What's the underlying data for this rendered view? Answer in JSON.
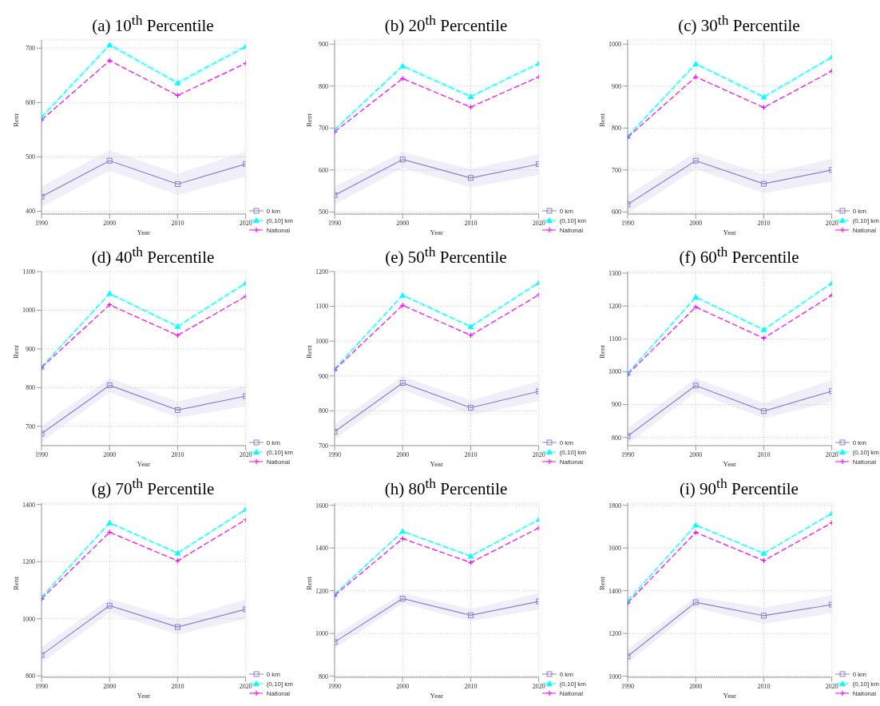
{
  "chart_data": [
    {
      "type": "line",
      "title": "(a) 10$^{th}$ Percentile",
      "xlabel": "Year",
      "ylabel": "Rent",
      "x": [
        1990,
        2000,
        2010,
        2020
      ],
      "xlim": [
        1990,
        2020
      ],
      "xticks": [
        1990,
        2000,
        2010,
        2020
      ],
      "ylim": [
        395,
        715
      ],
      "yticks": [
        400,
        500,
        600,
        700
      ],
      "grid": true,
      "legend": "bottom right",
      "series": [
        {
          "name": "0 km",
          "color": "#8c7fd0",
          "marker": "square",
          "line_style": "solid",
          "values": [
            427,
            493,
            450,
            487
          ],
          "lower": [
            408,
            475,
            430,
            464
          ],
          "upper": [
            446,
            512,
            469,
            510
          ]
        },
        {
          "name": "(0,10] km",
          "color": "#00ffff",
          "marker": "triangle",
          "line_style": "dashed",
          "values": [
            573,
            706,
            636,
            703
          ],
          "lower": [
            568,
            701,
            631,
            698
          ],
          "upper": [
            578,
            711,
            641,
            708
          ]
        },
        {
          "name": "National",
          "color": "#ff00ff",
          "marker": "cross",
          "line_style": "dashed",
          "values": [
            568,
            677,
            613,
            672
          ]
        }
      ]
    },
    {
      "type": "line",
      "title": "(b) 20$^{th}$ Percentile",
      "xlabel": "Year",
      "ylabel": "Rent",
      "x": [
        1990,
        2000,
        2010,
        2020
      ],
      "xlim": [
        1990,
        2020
      ],
      "xticks": [
        1990,
        2000,
        2010,
        2020
      ],
      "ylim": [
        495,
        910
      ],
      "yticks": [
        500,
        600,
        700,
        800,
        900
      ],
      "grid": true,
      "legend": "bottom right",
      "series": [
        {
          "name": "0 km",
          "color": "#8c7fd0",
          "marker": "square",
          "line_style": "solid",
          "values": [
            540,
            625,
            581,
            614
          ],
          "lower": [
            518,
            605,
            559,
            588
          ],
          "upper": [
            560,
            643,
            602,
            638
          ]
        },
        {
          "name": "(0,10] km",
          "color": "#00ffff",
          "marker": "triangle",
          "line_style": "dashed",
          "values": [
            696,
            848,
            775,
            854
          ],
          "lower": [
            691,
            843,
            770,
            849
          ],
          "upper": [
            701,
            853,
            780,
            859
          ]
        },
        {
          "name": "National",
          "color": "#ff00ff",
          "marker": "cross",
          "line_style": "dashed",
          "values": [
            691,
            818,
            750,
            822
          ]
        }
      ]
    },
    {
      "type": "line",
      "title": "(c) 30$^{th}$ Percentile",
      "xlabel": "Year",
      "ylabel": "Rent",
      "x": [
        1990,
        2000,
        2010,
        2020
      ],
      "xlim": [
        1990,
        2020
      ],
      "xticks": [
        1990,
        2000,
        2010,
        2020
      ],
      "ylim": [
        595,
        1010
      ],
      "yticks": [
        600,
        700,
        800,
        900,
        1000
      ],
      "grid": true,
      "legend": "bottom right",
      "series": [
        {
          "name": "0 km",
          "color": "#8c7fd0",
          "marker": "square",
          "line_style": "solid",
          "values": [
            618,
            722,
            667,
            700
          ],
          "lower": [
            597,
            702,
            645,
            673
          ],
          "upper": [
            640,
            742,
            689,
            727
          ]
        },
        {
          "name": "(0,10] km",
          "color": "#00ffff",
          "marker": "triangle",
          "line_style": "dashed",
          "values": [
            780,
            953,
            874,
            969
          ],
          "lower": [
            775,
            948,
            869,
            964
          ],
          "upper": [
            785,
            958,
            879,
            974
          ]
        },
        {
          "name": "National",
          "color": "#ff00ff",
          "marker": "cross",
          "line_style": "dashed",
          "values": [
            778,
            922,
            849,
            936
          ]
        }
      ]
    },
    {
      "type": "line",
      "title": "(d) 40$^{th}$ Percentile",
      "xlabel": "Year",
      "ylabel": "Rent",
      "x": [
        1990,
        2000,
        2010,
        2020
      ],
      "xlim": [
        1990,
        2020
      ],
      "xticks": [
        1990,
        2000,
        2010,
        2020
      ],
      "ylim": [
        650,
        1100
      ],
      "yticks": [
        700,
        800,
        900,
        1000,
        1100
      ],
      "grid": true,
      "legend": "bottom right",
      "series": [
        {
          "name": "0 km",
          "color": "#8c7fd0",
          "marker": "square",
          "line_style": "solid",
          "values": [
            681,
            806,
            742,
            778
          ],
          "lower": [
            660,
            788,
            722,
            752
          ],
          "upper": [
            702,
            824,
            764,
            805
          ]
        },
        {
          "name": "(0,10] km",
          "color": "#00ffff",
          "marker": "triangle",
          "line_style": "dashed",
          "values": [
            853,
            1043,
            958,
            1070
          ],
          "lower": [
            848,
            1038,
            953,
            1065
          ],
          "upper": [
            858,
            1048,
            963,
            1075
          ]
        },
        {
          "name": "National",
          "color": "#ff00ff",
          "marker": "cross",
          "line_style": "dashed",
          "values": [
            852,
            1014,
            935,
            1036
          ]
        }
      ]
    },
    {
      "type": "line",
      "title": "(e) 50$^{th}$ Percentile",
      "xlabel": "Year",
      "ylabel": "Rent",
      "x": [
        1990,
        2000,
        2010,
        2020
      ],
      "xlim": [
        1990,
        2020
      ],
      "xticks": [
        1990,
        2000,
        2010,
        2020
      ],
      "ylim": [
        700,
        1200
      ],
      "yticks": [
        700,
        800,
        900,
        1000,
        1100,
        1200
      ],
      "grid": true,
      "legend": "bottom right",
      "series": [
        {
          "name": "0 km",
          "color": "#8c7fd0",
          "marker": "square",
          "line_style": "solid",
          "values": [
            740,
            880,
            809,
            856
          ],
          "lower": [
            718,
            860,
            788,
            828
          ],
          "upper": [
            762,
            900,
            830,
            885
          ]
        },
        {
          "name": "(0,10] km",
          "color": "#00ffff",
          "marker": "triangle",
          "line_style": "dashed",
          "values": [
            920,
            1132,
            1042,
            1168
          ],
          "lower": [
            915,
            1127,
            1037,
            1163
          ],
          "upper": [
            925,
            1137,
            1047,
            1173
          ]
        },
        {
          "name": "National",
          "color": "#ff00ff",
          "marker": "cross",
          "line_style": "dashed",
          "values": [
            918,
            1103,
            1017,
            1133
          ]
        }
      ]
    },
    {
      "type": "line",
      "title": "(f) 60$^{th}$ Percentile",
      "xlabel": "Year",
      "ylabel": "Rent",
      "x": [
        1990,
        2000,
        2010,
        2020
      ],
      "xlim": [
        1990,
        2020
      ],
      "xticks": [
        1990,
        2000,
        2010,
        2020
      ],
      "ylim": [
        775,
        1305
      ],
      "yticks": [
        800,
        900,
        1000,
        1100,
        1200,
        1300
      ],
      "grid": true,
      "legend": "bottom right",
      "series": [
        {
          "name": "0 km",
          "color": "#8c7fd0",
          "marker": "square",
          "line_style": "solid",
          "values": [
            804,
            958,
            880,
            941
          ],
          "lower": [
            780,
            938,
            858,
            910
          ],
          "upper": [
            828,
            980,
            905,
            975
          ]
        },
        {
          "name": "(0,10] km",
          "color": "#00ffff",
          "marker": "triangle",
          "line_style": "dashed",
          "values": [
            995,
            1227,
            1128,
            1270
          ],
          "lower": [
            990,
            1222,
            1123,
            1265
          ],
          "upper": [
            1000,
            1232,
            1133,
            1275
          ]
        },
        {
          "name": "National",
          "color": "#ff00ff",
          "marker": "cross",
          "line_style": "dashed",
          "values": [
            992,
            1197,
            1102,
            1233
          ]
        }
      ]
    },
    {
      "type": "line",
      "title": "(g) 70$^{th}$ Percentile",
      "xlabel": "Year",
      "ylabel": "Rent",
      "x": [
        1990,
        2000,
        2010,
        2020
      ],
      "xlim": [
        1990,
        2020
      ],
      "xticks": [
        1990,
        2000,
        2010,
        2020
      ],
      "ylim": [
        795,
        1405
      ],
      "yticks": [
        800,
        1000,
        1200,
        1400
      ],
      "grid": true,
      "legend": "bottom right",
      "series": [
        {
          "name": "0 km",
          "color": "#8c7fd0",
          "marker": "square",
          "line_style": "solid",
          "values": [
            873,
            1046,
            971,
            1033
          ],
          "lower": [
            845,
            1022,
            945,
            1000
          ],
          "upper": [
            900,
            1070,
            998,
            1068
          ]
        },
        {
          "name": "(0,10] km",
          "color": "#00ffff",
          "marker": "triangle",
          "line_style": "dashed",
          "values": [
            1075,
            1336,
            1230,
            1383
          ],
          "lower": [
            1069,
            1330,
            1224,
            1377
          ],
          "upper": [
            1081,
            1342,
            1236,
            1389
          ]
        },
        {
          "name": "National",
          "color": "#ff00ff",
          "marker": "cross",
          "line_style": "dashed",
          "values": [
            1070,
            1303,
            1203,
            1347
          ]
        }
      ]
    },
    {
      "type": "line",
      "title": "(h) 80$^{th}$ Percentile",
      "xlabel": "Year",
      "ylabel": "Rent",
      "x": [
        1990,
        2000,
        2010,
        2020
      ],
      "xlim": [
        1990,
        2020
      ],
      "xticks": [
        1990,
        2000,
        2010,
        2020
      ],
      "ylim": [
        795,
        1610
      ],
      "yticks": [
        800,
        1000,
        1200,
        1400,
        1600
      ],
      "grid": true,
      "legend": "bottom right",
      "series": [
        {
          "name": "0 km",
          "color": "#8c7fd0",
          "marker": "square",
          "line_style": "solid",
          "values": [
            960,
            1163,
            1085,
            1150
          ],
          "lower": [
            930,
            1140,
            1058,
            1112
          ],
          "upper": [
            992,
            1188,
            1115,
            1188
          ]
        },
        {
          "name": "(0,10] km",
          "color": "#00ffff",
          "marker": "triangle",
          "line_style": "dashed",
          "values": [
            1183,
            1478,
            1362,
            1533
          ],
          "lower": [
            1176,
            1471,
            1355,
            1526
          ],
          "upper": [
            1190,
            1485,
            1369,
            1540
          ]
        },
        {
          "name": "National",
          "color": "#ff00ff",
          "marker": "cross",
          "line_style": "dashed",
          "values": [
            1178,
            1444,
            1332,
            1494
          ]
        }
      ]
    },
    {
      "type": "line",
      "title": "(i) 90$^{th}$ Percentile",
      "xlabel": "Year",
      "ylabel": "Rent",
      "x": [
        1990,
        2000,
        2010,
        2020
      ],
      "xlim": [
        1990,
        2020
      ],
      "xticks": [
        1990,
        2000,
        2010,
        2020
      ],
      "ylim": [
        995,
        1810
      ],
      "yticks": [
        1000,
        1200,
        1400,
        1600,
        1800
      ],
      "grid": true,
      "legend": "bottom right",
      "series": [
        {
          "name": "0 km",
          "color": "#8c7fd0",
          "marker": "square",
          "line_style": "solid",
          "values": [
            1093,
            1346,
            1283,
            1335
          ],
          "lower": [
            1060,
            1320,
            1245,
            1295
          ],
          "upper": [
            1125,
            1373,
            1320,
            1380
          ]
        },
        {
          "name": "(0,10] km",
          "color": "#00ffff",
          "marker": "triangle",
          "line_style": "dashed",
          "values": [
            1352,
            1707,
            1575,
            1762
          ],
          "lower": [
            1345,
            1700,
            1568,
            1755
          ],
          "upper": [
            1359,
            1714,
            1582,
            1769
          ]
        },
        {
          "name": "National",
          "color": "#ff00ff",
          "marker": "cross",
          "line_style": "dashed",
          "values": [
            1343,
            1673,
            1541,
            1718
          ]
        }
      ]
    }
  ]
}
